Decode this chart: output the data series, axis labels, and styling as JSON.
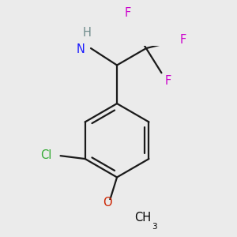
{
  "background_color": "#ebebeb",
  "figsize": [
    3.0,
    3.0
  ],
  "dpi": 100,
  "atom_colors": {
    "C": "#000000",
    "H": "#6e8b8b",
    "N": "#1a1aff",
    "O": "#cc2200",
    "F": "#cc00cc",
    "Cl": "#33aa33"
  },
  "bond_color": "#1a1a1a",
  "bond_lw": 1.6,
  "font_size": 10.5,
  "font_size_sub": 7.5
}
